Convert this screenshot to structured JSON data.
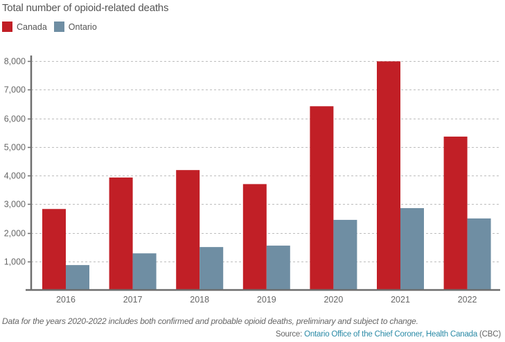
{
  "colors": {
    "canada": "#c11f26",
    "ontario": "#6f8ea3",
    "axis": "#6e6e6e",
    "grid": "#bdbdbd",
    "link": "#2a8aa6"
  },
  "source": {
    "prefix": "Source: ",
    "links": "Ontario Office of the Chief Coroner, Health Canada",
    "suffix": " (CBC)"
  },
  "note": "Data for the years 2020-2022 includes both confirmed and probable opioid deaths, preliminary and subject to change.",
  "chart_data": {
    "type": "bar",
    "title": "Total number of opioid-related deaths",
    "xlabel": "",
    "ylabel": "",
    "categories": [
      "2016",
      "2017",
      "2018",
      "2019",
      "2020",
      "2021",
      "2022"
    ],
    "series": [
      {
        "name": "Canada",
        "color": "#c11f26",
        "values": [
          2830,
          3930,
          4190,
          3700,
          6420,
          7990,
          5360
        ]
      },
      {
        "name": "Ontario",
        "color": "#6f8ea3",
        "values": [
          870,
          1280,
          1500,
          1550,
          2450,
          2860,
          2500
        ]
      }
    ],
    "ylim": [
      0,
      8000
    ],
    "yticks": [
      1000,
      2000,
      3000,
      4000,
      5000,
      6000,
      7000,
      8000
    ],
    "ytick_labels": [
      "1,000",
      "2,000",
      "3,000",
      "4,000",
      "5,000",
      "6,000",
      "7,000",
      "8,000"
    ],
    "grid": true,
    "legend": "top-left"
  }
}
